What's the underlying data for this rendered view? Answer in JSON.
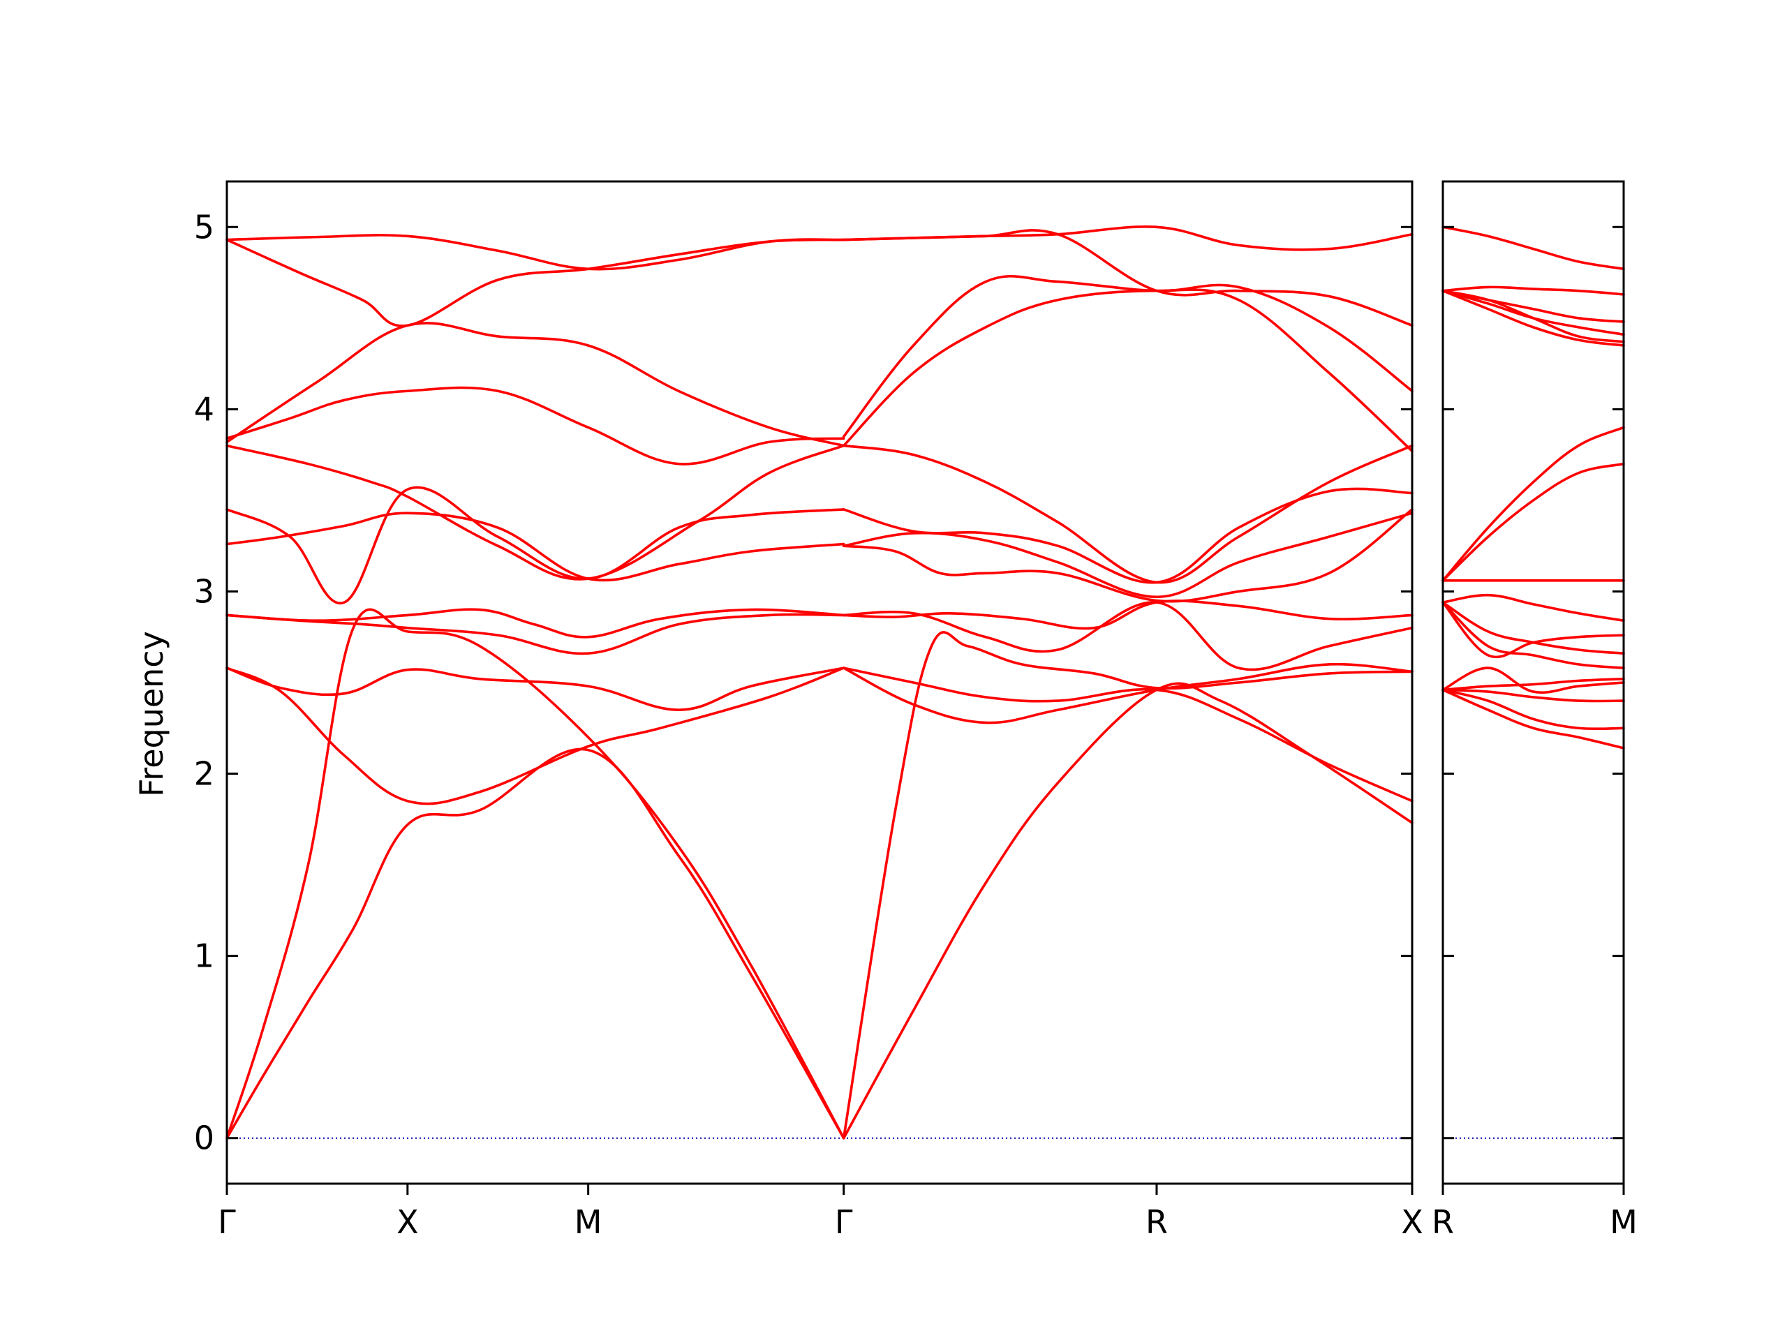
{
  "colors": {
    "bands": "#ff0000",
    "zero_line": "#0000aa",
    "axes": "#000000",
    "background": "#ffffff"
  },
  "chart_data": {
    "type": "line",
    "title": "",
    "xlabel": "",
    "ylabel": "Frequency",
    "ylim": [
      -0.25,
      5.25
    ],
    "yticks": [
      0,
      1,
      2,
      3,
      4,
      5
    ],
    "ytick_labels": [
      "0",
      "1",
      "2",
      "3",
      "4",
      "5"
    ],
    "grid": false,
    "panels": [
      {
        "labels": [
          "Γ",
          "X",
          "M",
          "Γ",
          "R",
          "X"
        ],
        "label_positions": [
          0,
          1,
          2,
          3.4142,
          5.1463,
          6.5605
        ],
        "xlim": [
          0,
          6.5605
        ],
        "bands": [
          {
            "x": [
              0,
              0.2,
              0.45,
              0.7,
              1,
              1.4,
              2,
              2.5,
              2.9,
              3.4142
            ],
            "y": [
              0,
              0.34,
              0.75,
              1.15,
              1.72,
              1.8,
              2.13,
              1.55,
              0.9,
              0
            ]
          },
          {
            "x": [
              0,
              0.2,
              0.45,
              0.7,
              1,
              1.4,
              2,
              2.5,
              2.9,
              3.4142
            ],
            "y": [
              0,
              0.6,
              1.5,
              2.8,
              2.78,
              2.7,
              2.2,
              1.6,
              0.95,
              0
            ]
          },
          {
            "x": [
              0,
              0.3,
              0.65,
              1,
              1.4,
              2,
              2.5,
              2.9,
              3.4142
            ],
            "y": [
              2.58,
              2.47,
              2.44,
              2.57,
              2.52,
              2.48,
              2.35,
              2.48,
              2.58
            ]
          },
          {
            "x": [
              0,
              0.3,
              0.65,
              1,
              1.4,
              2,
              2.4,
              3,
              3.4142
            ],
            "y": [
              2.58,
              2.45,
              2.1,
              1.85,
              1.9,
              2.15,
              2.25,
              2.42,
              2.58
            ]
          },
          {
            "x": [
              0,
              0.4,
              0.75,
              1,
              1.5,
              2,
              2.5,
              3,
              3.4142
            ],
            "y": [
              2.87,
              2.84,
              2.82,
              2.8,
              2.76,
              2.66,
              2.82,
              2.87,
              2.87
            ]
          },
          {
            "x": [
              0,
              0.5,
              1,
              1.4,
              1.7,
              2,
              2.4,
              2.9,
              3.4142
            ],
            "y": [
              2.87,
              2.84,
              2.87,
              2.9,
              2.82,
              2.75,
              2.85,
              2.9,
              2.87
            ]
          },
          {
            "x": [
              0,
              0.3,
              0.65,
              1,
              1.5,
              2,
              2.5,
              2.9,
              3.4142
            ],
            "y": [
              3.26,
              3.3,
              3.36,
              3.43,
              3.35,
              3.07,
              3.15,
              3.22,
              3.26
            ]
          },
          {
            "x": [
              0,
              0.35,
              0.65,
              1,
              1.5,
              2,
              2.5,
              2.9,
              3.4142
            ],
            "y": [
              3.45,
              3.3,
              2.94,
              3.56,
              3.3,
              3.07,
              3.35,
              3.42,
              3.45
            ]
          },
          {
            "x": [
              0,
              0.45,
              0.8,
              1,
              1.5,
              2,
              2.6,
              3,
              3.4142
            ],
            "y": [
              3.8,
              3.7,
              3.6,
              3.52,
              3.25,
              3.07,
              3.38,
              3.65,
              3.8
            ]
          },
          {
            "x": [
              0,
              0.35,
              0.65,
              1,
              1.5,
              2,
              2.5,
              3,
              3.4142
            ],
            "y": [
              3.84,
              3.95,
              4.05,
              4.1,
              4.1,
              3.9,
              3.7,
              3.82,
              3.84
            ]
          },
          {
            "x": [
              0,
              0.5,
              1,
              1.5,
              2,
              2.5,
              3,
              3.4142
            ],
            "y": [
              3.82,
              4.15,
              4.46,
              4.4,
              4.35,
              4.1,
              3.9,
              3.8
            ]
          },
          {
            "x": [
              0,
              0.4,
              0.75,
              1,
              1.5,
              2,
              2.5,
              3,
              3.4142
            ],
            "y": [
              4.93,
              4.75,
              4.6,
              4.46,
              4.71,
              4.77,
              4.85,
              4.92,
              4.93
            ]
          },
          {
            "x": [
              0,
              0.5,
              1,
              1.5,
              2,
              2.5,
              3,
              3.4142
            ],
            "y": [
              4.93,
              4.945,
              4.95,
              4.87,
              4.77,
              4.82,
              4.92,
              4.93
            ]
          },
          {
            "x": [
              3.4142,
              3.8,
              4.2,
              4.6,
              5.1463,
              5.5,
              6,
              6.5605
            ],
            "y": [
              0,
              0.7,
              1.4,
              1.95,
              2.46,
              2.4,
              2.1,
              1.73
            ]
          },
          {
            "x": [
              3.4142,
              3.7,
              3.9,
              4.1,
              4.4,
              4.8,
              5.1463,
              5.6,
              6.1,
              6.5605
            ],
            "y": [
              0,
              1.8,
              2.7,
              2.7,
              2.6,
              2.55,
              2.47,
              2.5,
              2.55,
              2.56
            ]
          },
          {
            "x": [
              3.4142,
              3.8,
              4.2,
              4.6,
              5.1463,
              5.6,
              6.1,
              6.5605
            ],
            "y": [
              2.58,
              2.5,
              2.42,
              2.4,
              2.46,
              2.3,
              2.05,
              1.85
            ]
          },
          {
            "x": [
              3.4142,
              3.8,
              4.2,
              4.6,
              5.1463,
              5.6,
              6.1,
              6.5605
            ],
            "y": [
              2.58,
              2.38,
              2.28,
              2.35,
              2.46,
              2.52,
              2.6,
              2.56
            ]
          },
          {
            "x": [
              3.4142,
              3.8,
              4.2,
              4.6,
              5.1463,
              5.6,
              6.1,
              6.5605
            ],
            "y": [
              2.87,
              2.88,
              2.75,
              2.68,
              2.94,
              2.58,
              2.7,
              2.8
            ]
          },
          {
            "x": [
              3.4142,
              3.7,
              4,
              4.4,
              4.8,
              5.1463,
              5.6,
              6.1,
              6.5605
            ],
            "y": [
              2.87,
              2.86,
              2.88,
              2.85,
              2.8,
              2.94,
              2.92,
              2.85,
              2.87
            ]
          },
          {
            "x": [
              3.4142,
              3.7,
              3.95,
              4.2,
              4.6,
              5.1463,
              5.6,
              6.1,
              6.5605
            ],
            "y": [
              3.25,
              3.22,
              3.1,
              3.1,
              3.1,
              2.95,
              3.0,
              3.1,
              3.45
            ]
          },
          {
            "x": [
              3.4142,
              3.8,
              4.2,
              4.6,
              5.1463,
              5.6,
              6.1,
              6.5605
            ],
            "y": [
              3.25,
              3.32,
              3.28,
              3.16,
              2.97,
              3.16,
              3.3,
              3.43
            ]
          },
          {
            "x": [
              3.4142,
              3.8,
              4.2,
              4.6,
              5.1463,
              5.6,
              6.1,
              6.5605
            ],
            "y": [
              3.45,
              3.33,
              3.32,
              3.25,
              3.05,
              3.35,
              3.55,
              3.54
            ]
          },
          {
            "x": [
              3.4142,
              3.8,
              4.2,
              4.6,
              5.1463,
              5.6,
              6.1,
              6.5605
            ],
            "y": [
              3.8,
              3.75,
              3.6,
              3.38,
              3.05,
              3.3,
              3.6,
              3.8
            ]
          },
          {
            "x": [
              3.4142,
              3.8,
              4.2,
              4.6,
              5.1463,
              5.6,
              6.1,
              6.5605
            ],
            "y": [
              3.85,
              4.35,
              4.7,
              4.7,
              4.65,
              4.67,
              4.45,
              4.1
            ]
          },
          {
            "x": [
              3.4142,
              3.8,
              4.2,
              4.6,
              5.1463,
              5.6,
              6.1,
              6.5605
            ],
            "y": [
              3.8,
              4.2,
              4.45,
              4.6,
              4.65,
              4.6,
              4.2,
              3.77
            ]
          },
          {
            "x": [
              3.4142,
              3.8,
              4.2,
              4.6,
              5.1463,
              5.6,
              6.1,
              6.5605
            ],
            "y": [
              4.93,
              4.94,
              4.95,
              4.96,
              4.65,
              4.65,
              4.62,
              4.46
            ]
          },
          {
            "x": [
              3.4142,
              3.8,
              4.2,
              4.6,
              5.1463,
              5.6,
              6.1,
              6.5605
            ],
            "y": [
              4.93,
              4.94,
              4.95,
              4.96,
              5.0,
              4.9,
              4.88,
              4.96
            ]
          }
        ]
      },
      {
        "labels": [
          "R",
          "M"
        ],
        "label_positions": [
          0,
          1
        ],
        "xlim": [
          0,
          1
        ],
        "bands": [
          {
            "x": [
              0,
              0.25,
              0.5,
              0.75,
              1
            ],
            "y": [
              2.46,
              2.35,
              2.25,
              2.2,
              2.14
            ]
          },
          {
            "x": [
              0,
              0.25,
              0.5,
              0.75,
              1
            ],
            "y": [
              2.46,
              2.4,
              2.3,
              2.25,
              2.25
            ]
          },
          {
            "x": [
              0,
              0.25,
              0.5,
              0.75,
              1
            ],
            "y": [
              2.46,
              2.45,
              2.42,
              2.4,
              2.4
            ]
          },
          {
            "x": [
              0,
              0.25,
              0.5,
              0.75,
              1
            ],
            "y": [
              2.46,
              2.48,
              2.49,
              2.51,
              2.52
            ]
          },
          {
            "x": [
              0,
              0.25,
              0.5,
              0.75,
              1
            ],
            "y": [
              2.46,
              2.58,
              2.45,
              2.48,
              2.5
            ]
          },
          {
            "x": [
              0,
              0.25,
              0.5,
              0.75,
              1
            ],
            "y": [
              2.94,
              2.7,
              2.65,
              2.6,
              2.58
            ]
          },
          {
            "x": [
              0,
              0.25,
              0.5,
              0.75,
              1
            ],
            "y": [
              2.94,
              2.65,
              2.72,
              2.75,
              2.76
            ]
          },
          {
            "x": [
              0,
              0.25,
              0.5,
              0.75,
              1
            ],
            "y": [
              2.94,
              2.78,
              2.72,
              2.68,
              2.66
            ]
          },
          {
            "x": [
              0,
              0.25,
              0.5,
              0.75,
              1
            ],
            "y": [
              2.94,
              2.98,
              2.93,
              2.88,
              2.84
            ]
          },
          {
            "x": [
              0,
              0.25,
              0.5,
              0.75,
              1
            ],
            "y": [
              3.06,
              3.06,
              3.06,
              3.06,
              3.06
            ]
          },
          {
            "x": [
              0,
              0.25,
              0.5,
              0.75,
              1
            ],
            "y": [
              3.06,
              3.3,
              3.5,
              3.65,
              3.7
            ]
          },
          {
            "x": [
              0,
              0.25,
              0.5,
              0.75,
              1
            ],
            "y": [
              3.06,
              3.35,
              3.6,
              3.8,
              3.9
            ]
          },
          {
            "x": [
              0,
              0.25,
              0.5,
              0.75,
              1
            ],
            "y": [
              4.65,
              4.55,
              4.45,
              4.38,
              4.35
            ]
          },
          {
            "x": [
              0,
              0.25,
              0.5,
              0.75,
              1
            ],
            "y": [
              4.65,
              4.6,
              4.5,
              4.4,
              4.37
            ]
          },
          {
            "x": [
              0,
              0.25,
              0.5,
              0.75,
              1
            ],
            "y": [
              4.65,
              4.58,
              4.5,
              4.45,
              4.41
            ]
          },
          {
            "x": [
              0,
              0.25,
              0.5,
              0.75,
              1
            ],
            "y": [
              4.65,
              4.6,
              4.55,
              4.5,
              4.48
            ]
          },
          {
            "x": [
              0,
              0.25,
              0.5,
              0.75,
              1
            ],
            "y": [
              4.65,
              4.67,
              4.66,
              4.65,
              4.63
            ]
          },
          {
            "x": [
              0,
              0.25,
              0.5,
              0.75,
              1
            ],
            "y": [
              5.0,
              4.95,
              4.88,
              4.81,
              4.77
            ]
          }
        ]
      }
    ]
  }
}
